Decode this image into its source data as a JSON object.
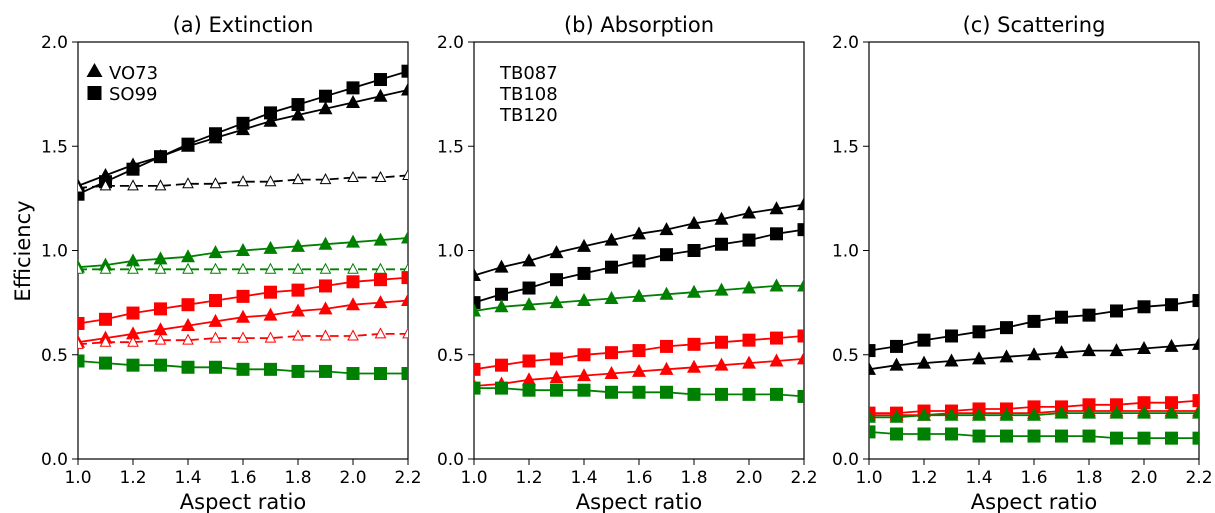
{
  "colors": {
    "TB087": "#008000",
    "TB108": "#000000",
    "TB120": "#ff0000"
  },
  "figure": {
    "ylabel": "Efficiency",
    "marker_legend": [
      {
        "label": "VO73",
        "marker": "triangle"
      },
      {
        "label": "SO99",
        "marker": "square"
      }
    ],
    "color_legend": [
      {
        "label": "TB087",
        "color_key": "TB087"
      },
      {
        "label": "TB108",
        "color_key": "TB108"
      },
      {
        "label": "TB120",
        "color_key": "TB120"
      }
    ]
  },
  "chart_data": [
    {
      "type": "line",
      "title": "(a) Extinction",
      "xlabel": "Aspect ratio",
      "ylabel": "Efficiency",
      "xlim": [
        1.0,
        2.2
      ],
      "ylim": [
        0.0,
        2.0
      ],
      "xticks": [
        "1.0",
        "1.2",
        "1.4",
        "1.6",
        "1.8",
        "2.0",
        "2.2"
      ],
      "yticks": [
        "0.0",
        "0.5",
        "1.0",
        "1.5",
        "2.0"
      ],
      "grid": false,
      "x": [
        1.0,
        1.1,
        1.2,
        1.3,
        1.4,
        1.5,
        1.6,
        1.7,
        1.8,
        1.9,
        2.0,
        2.1,
        2.2
      ],
      "series": [
        {
          "channel": "TB108",
          "marker": "triangle",
          "style": "solid",
          "values": [
            1.31,
            1.36,
            1.41,
            1.45,
            1.5,
            1.54,
            1.58,
            1.62,
            1.65,
            1.68,
            1.71,
            1.74,
            1.77
          ]
        },
        {
          "channel": "TB108",
          "marker": "square",
          "style": "solid",
          "values": [
            1.27,
            1.33,
            1.39,
            1.45,
            1.51,
            1.56,
            1.61,
            1.66,
            1.7,
            1.74,
            1.78,
            1.82,
            1.86
          ]
        },
        {
          "channel": "TB108",
          "marker": "triangle-open",
          "style": "dashed",
          "values": [
            1.3,
            1.31,
            1.31,
            1.31,
            1.32,
            1.32,
            1.33,
            1.33,
            1.34,
            1.34,
            1.35,
            1.35,
            1.36
          ]
        },
        {
          "channel": "TB087",
          "marker": "triangle",
          "style": "solid",
          "values": [
            0.92,
            0.93,
            0.95,
            0.96,
            0.97,
            0.99,
            1.0,
            1.01,
            1.02,
            1.03,
            1.04,
            1.05,
            1.06
          ]
        },
        {
          "channel": "TB087",
          "marker": "triangle-open",
          "style": "dashed",
          "values": [
            0.91,
            0.91,
            0.91,
            0.91,
            0.91,
            0.91,
            0.91,
            0.91,
            0.91,
            0.91,
            0.91,
            0.91,
            0.91
          ]
        },
        {
          "channel": "TB087",
          "marker": "square",
          "style": "solid",
          "values": [
            0.47,
            0.46,
            0.45,
            0.45,
            0.44,
            0.44,
            0.43,
            0.43,
            0.42,
            0.42,
            0.41,
            0.41,
            0.41
          ]
        },
        {
          "channel": "TB120",
          "marker": "square",
          "style": "solid",
          "values": [
            0.65,
            0.67,
            0.7,
            0.72,
            0.74,
            0.76,
            0.78,
            0.8,
            0.81,
            0.83,
            0.85,
            0.86,
            0.87
          ]
        },
        {
          "channel": "TB120",
          "marker": "triangle",
          "style": "solid",
          "values": [
            0.56,
            0.58,
            0.6,
            0.62,
            0.64,
            0.66,
            0.68,
            0.69,
            0.71,
            0.72,
            0.74,
            0.75,
            0.76
          ]
        },
        {
          "channel": "TB120",
          "marker": "triangle-open",
          "style": "dashed",
          "values": [
            0.55,
            0.56,
            0.56,
            0.57,
            0.57,
            0.58,
            0.58,
            0.58,
            0.59,
            0.59,
            0.59,
            0.6,
            0.6
          ]
        }
      ]
    },
    {
      "type": "line",
      "title": "(b) Absorption",
      "xlabel": "Aspect ratio",
      "ylabel": "",
      "xlim": [
        1.0,
        2.2
      ],
      "ylim": [
        0.0,
        2.0
      ],
      "xticks": [
        "1.0",
        "1.2",
        "1.4",
        "1.6",
        "1.8",
        "2.0",
        "2.2"
      ],
      "yticks": [
        "0.0",
        "0.5",
        "1.0",
        "1.5",
        "2.0"
      ],
      "grid": false,
      "x": [
        1.0,
        1.1,
        1.2,
        1.3,
        1.4,
        1.5,
        1.6,
        1.7,
        1.8,
        1.9,
        2.0,
        2.1,
        2.2
      ],
      "series": [
        {
          "channel": "TB108",
          "marker": "triangle",
          "style": "solid",
          "values": [
            0.88,
            0.92,
            0.95,
            0.99,
            1.02,
            1.05,
            1.08,
            1.1,
            1.13,
            1.15,
            1.18,
            1.2,
            1.22
          ]
        },
        {
          "channel": "TB108",
          "marker": "square",
          "style": "solid",
          "values": [
            0.75,
            0.79,
            0.82,
            0.86,
            0.89,
            0.92,
            0.95,
            0.98,
            1.0,
            1.03,
            1.05,
            1.08,
            1.1
          ]
        },
        {
          "channel": "TB087",
          "marker": "triangle",
          "style": "solid",
          "values": [
            0.71,
            0.73,
            0.74,
            0.75,
            0.76,
            0.77,
            0.78,
            0.79,
            0.8,
            0.81,
            0.82,
            0.83,
            0.83
          ]
        },
        {
          "channel": "TB120",
          "marker": "square",
          "style": "solid",
          "values": [
            0.43,
            0.45,
            0.47,
            0.48,
            0.5,
            0.51,
            0.52,
            0.54,
            0.55,
            0.56,
            0.57,
            0.58,
            0.59
          ]
        },
        {
          "channel": "TB120",
          "marker": "triangle",
          "style": "solid",
          "values": [
            0.35,
            0.36,
            0.38,
            0.39,
            0.4,
            0.41,
            0.42,
            0.43,
            0.44,
            0.45,
            0.46,
            0.47,
            0.48
          ]
        },
        {
          "channel": "TB087",
          "marker": "square",
          "style": "solid",
          "values": [
            0.34,
            0.34,
            0.33,
            0.33,
            0.33,
            0.32,
            0.32,
            0.32,
            0.31,
            0.31,
            0.31,
            0.31,
            0.3
          ]
        }
      ]
    },
    {
      "type": "line",
      "title": "(c) Scattering",
      "xlabel": "Aspect ratio",
      "ylabel": "",
      "xlim": [
        1.0,
        2.2
      ],
      "ylim": [
        0.0,
        2.0
      ],
      "xticks": [
        "1.0",
        "1.2",
        "1.4",
        "1.6",
        "1.8",
        "2.0",
        "2.2"
      ],
      "yticks": [
        "0.0",
        "0.5",
        "1.0",
        "1.5",
        "2.0"
      ],
      "grid": false,
      "x": [
        1.0,
        1.1,
        1.2,
        1.3,
        1.4,
        1.5,
        1.6,
        1.7,
        1.8,
        1.9,
        2.0,
        2.1,
        2.2
      ],
      "series": [
        {
          "channel": "TB108",
          "marker": "square",
          "style": "solid",
          "values": [
            0.52,
            0.54,
            0.57,
            0.59,
            0.61,
            0.63,
            0.66,
            0.68,
            0.69,
            0.71,
            0.73,
            0.74,
            0.76
          ]
        },
        {
          "channel": "TB108",
          "marker": "triangle",
          "style": "solid",
          "values": [
            0.43,
            0.45,
            0.46,
            0.47,
            0.48,
            0.49,
            0.5,
            0.51,
            0.52,
            0.52,
            0.53,
            0.54,
            0.55
          ]
        },
        {
          "channel": "TB120",
          "marker": "square",
          "style": "solid",
          "values": [
            0.22,
            0.22,
            0.23,
            0.23,
            0.24,
            0.24,
            0.25,
            0.25,
            0.26,
            0.26,
            0.27,
            0.27,
            0.28
          ]
        },
        {
          "channel": "TB120",
          "marker": "triangle",
          "style": "solid",
          "values": [
            0.21,
            0.21,
            0.21,
            0.22,
            0.22,
            0.22,
            0.22,
            0.23,
            0.23,
            0.23,
            0.23,
            0.23,
            0.23
          ]
        },
        {
          "channel": "TB087",
          "marker": "triangle",
          "style": "solid",
          "values": [
            0.2,
            0.2,
            0.21,
            0.21,
            0.21,
            0.21,
            0.21,
            0.22,
            0.22,
            0.22,
            0.22,
            0.22,
            0.22
          ]
        },
        {
          "channel": "TB087",
          "marker": "square",
          "style": "solid",
          "values": [
            0.13,
            0.12,
            0.12,
            0.12,
            0.11,
            0.11,
            0.11,
            0.11,
            0.11,
            0.1,
            0.1,
            0.1,
            0.1
          ]
        }
      ]
    }
  ]
}
